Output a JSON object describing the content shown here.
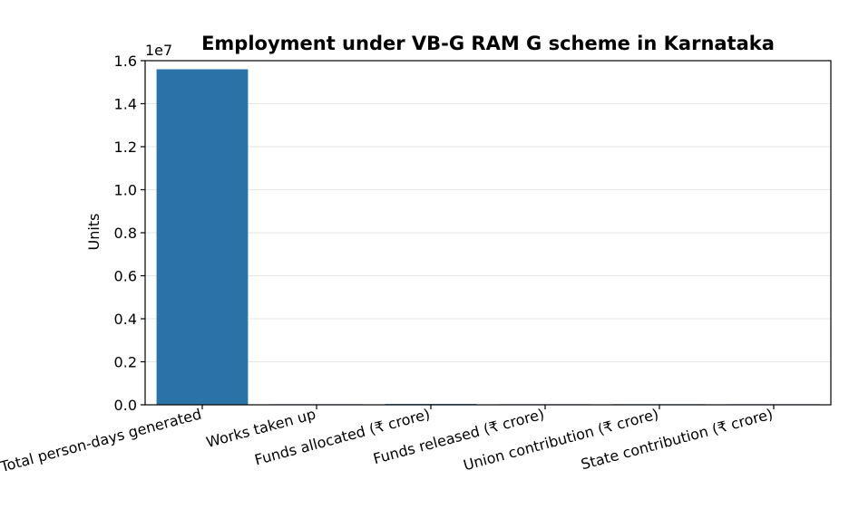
{
  "chart_data": {
    "type": "bar",
    "title": "Employment under VB-G RAM G scheme in Karnataka",
    "xlabel": "",
    "ylabel": "Units",
    "y_offset_label": "1e7",
    "y_scale": 10000000,
    "ylim": [
      0,
      16000000
    ],
    "yticks": [
      0,
      2000000,
      4000000,
      6000000,
      8000000,
      10000000,
      12000000,
      14000000,
      16000000
    ],
    "ytick_labels": [
      "0.0",
      "0.2",
      "0.4",
      "0.6",
      "0.8",
      "1.0",
      "1.2",
      "1.4",
      "1.6"
    ],
    "categories": [
      "Total person-days generated",
      "Works taken up",
      "Funds allocated (₹ crore)",
      "Funds released (₹ crore)",
      "Union contribution (₹ crore)",
      "State contribution (₹ crore)"
    ],
    "values": [
      15600000,
      12000,
      38000,
      20000,
      27000,
      11000
    ],
    "bar_color": "#2a73a8",
    "grid": "y",
    "legend": "none"
  }
}
